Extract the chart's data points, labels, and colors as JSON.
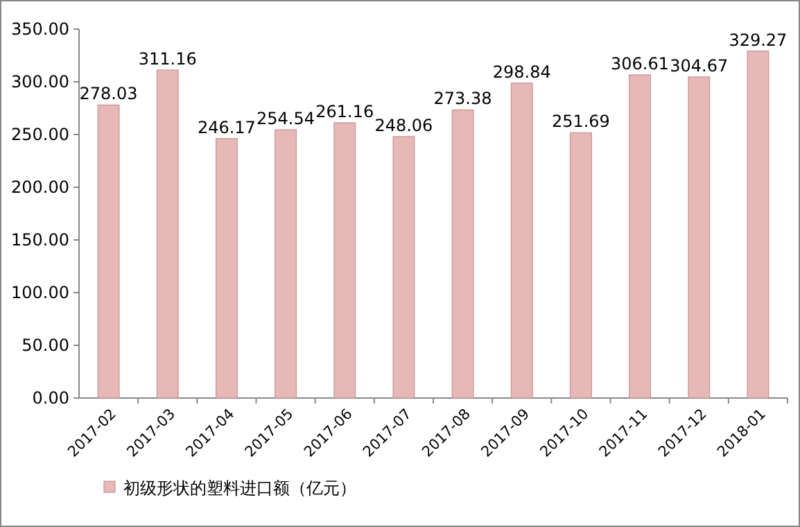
{
  "chart_data": {
    "type": "bar",
    "categories": [
      "2017-02",
      "2017-03",
      "2017-04",
      "2017-05",
      "2017-06",
      "2017-07",
      "2017-08",
      "2017-09",
      "2017-10",
      "2017-11",
      "2017-12",
      "2018-01"
    ],
    "series": [
      {
        "name": "初级形状的塑料进口额（亿元）",
        "color": "#e6b9b8",
        "values": [
          278.03,
          311.16,
          246.17,
          254.54,
          261.16,
          248.06,
          273.38,
          298.84,
          251.69,
          306.61,
          304.67,
          329.27
        ]
      }
    ],
    "ylim": [
      0,
      350
    ],
    "yticks": [
      {
        "value": 0,
        "label": "0.00"
      },
      {
        "value": 50,
        "label": "50.00"
      },
      {
        "value": 100,
        "label": "100.00"
      },
      {
        "value": 150,
        "label": "150.00"
      },
      {
        "value": 200,
        "label": "200.00"
      },
      {
        "value": 250,
        "label": "250.00"
      },
      {
        "value": 300,
        "label": "300.00"
      },
      {
        "value": 350,
        "label": "350.00"
      }
    ],
    "data_labels": true,
    "legend": "bottom left",
    "grid": false
  }
}
